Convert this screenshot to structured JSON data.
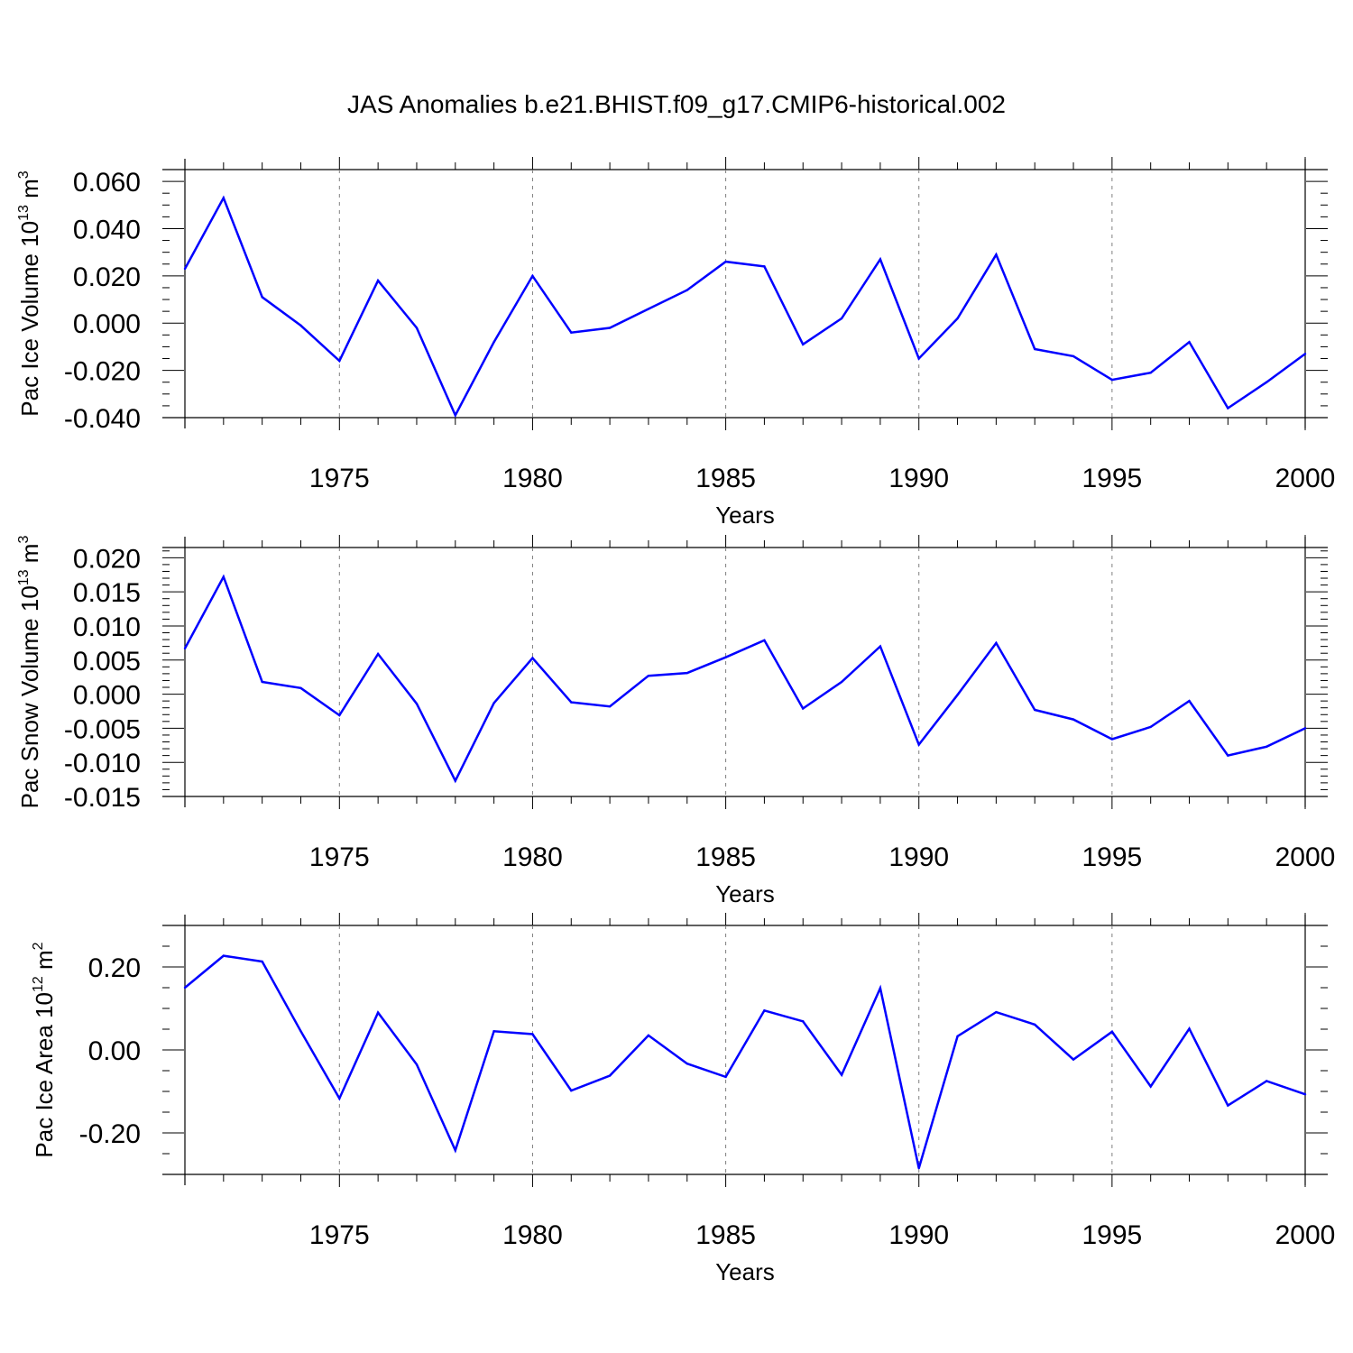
{
  "figure_title": "JAS Anomalies b.e21.BHIST.f09_g17.CMIP6-historical.002",
  "colors": {
    "line": "#0000ff",
    "axis": "#000000",
    "grid": "#808080"
  },
  "chart_data": [
    {
      "type": "line",
      "title": "JAS Anomalies b.e21.BHIST.f09_g17.CMIP6-historical.002",
      "xlabel": "Years",
      "ylabel": {
        "prefix": "Pac Ice Volume 10",
        "exponent": "13",
        "unit": " m",
        "unit_exponent": "3"
      },
      "xlim": [
        1971,
        2000
      ],
      "ylim": [
        -0.04,
        0.065
      ],
      "x_ticks": [
        1975,
        1980,
        1985,
        1990,
        1995,
        2000
      ],
      "y_ticks": [
        -0.04,
        -0.02,
        0.0,
        0.02,
        0.04,
        0.06
      ],
      "y_tick_labels": [
        "-0.040",
        "-0.020",
        "0.000",
        "0.020",
        "0.040",
        "0.060"
      ],
      "y_minor_step": 0.005,
      "grid": "vertical dashed at major x ticks",
      "series": [
        {
          "x": [
            1971,
            1972,
            1973,
            1974,
            1975,
            1976,
            1977,
            1978,
            1979,
            1980,
            1981,
            1982,
            1983,
            1984,
            1985,
            1986,
            1987,
            1988,
            1989,
            1990,
            1991,
            1992,
            1993,
            1994,
            1995,
            1996,
            1997,
            1998,
            1999,
            2000
          ],
          "values": [
            0.023,
            0.053,
            0.011,
            -0.001,
            -0.016,
            0.018,
            -0.002,
            -0.039,
            -0.008,
            0.02,
            -0.004,
            -0.002,
            0.006,
            0.014,
            0.026,
            0.024,
            -0.009,
            0.002,
            0.027,
            -0.015,
            0.002,
            0.029,
            -0.011,
            -0.014,
            -0.024,
            -0.021,
            -0.008,
            -0.036,
            -0.025,
            -0.013
          ]
        }
      ]
    },
    {
      "type": "line",
      "xlabel": "Years",
      "ylabel": {
        "prefix": "Pac Snow Volume 10",
        "exponent": "13",
        "unit": " m",
        "unit_exponent": "3"
      },
      "xlim": [
        1971,
        2000
      ],
      "ylim": [
        -0.015,
        0.0215
      ],
      "x_ticks": [
        1975,
        1980,
        1985,
        1990,
        1995,
        2000
      ],
      "y_ticks": [
        -0.015,
        -0.01,
        -0.005,
        0.0,
        0.005,
        0.01,
        0.015,
        0.02
      ],
      "y_tick_labels": [
        "-0.015",
        "-0.010",
        "-0.005",
        "0.000",
        "0.005",
        "0.010",
        "0.015",
        "0.020"
      ],
      "y_minor_step": 0.001,
      "grid": "vertical dashed at major x ticks",
      "series": [
        {
          "x": [
            1971,
            1972,
            1973,
            1974,
            1975,
            1976,
            1977,
            1978,
            1979,
            1980,
            1981,
            1982,
            1983,
            1984,
            1985,
            1986,
            1987,
            1988,
            1989,
            1990,
            1991,
            1992,
            1993,
            1994,
            1995,
            1996,
            1997,
            1998,
            1999,
            2000
          ],
          "values": [
            0.0067,
            0.0172,
            0.0018,
            0.0009,
            -0.0031,
            0.0059,
            -0.0014,
            -0.0127,
            -0.0013,
            0.0053,
            -0.0012,
            -0.0018,
            0.0027,
            0.0031,
            0.0054,
            0.0079,
            -0.0021,
            0.0018,
            0.007,
            -0.0074,
            -0.0001,
            0.0075,
            -0.0023,
            -0.0037,
            -0.0066,
            -0.0048,
            -0.001,
            -0.009,
            -0.0077,
            -0.005
          ]
        }
      ]
    },
    {
      "type": "line",
      "xlabel": "Years",
      "ylabel": {
        "prefix": "Pac Ice Area 10",
        "exponent": "12",
        "unit": " m",
        "unit_exponent": "2"
      },
      "xlim": [
        1971,
        2000
      ],
      "ylim": [
        -0.3,
        0.3
      ],
      "x_ticks": [
        1975,
        1980,
        1985,
        1990,
        1995,
        2000
      ],
      "y_ticks": [
        -0.2,
        0.0,
        0.2
      ],
      "y_tick_labels": [
        "-0.20",
        "0.00",
        "0.20"
      ],
      "y_minor_step": 0.05,
      "grid": "vertical dashed at major x ticks",
      "series": [
        {
          "x": [
            1971,
            1972,
            1973,
            1974,
            1975,
            1976,
            1977,
            1978,
            1979,
            1980,
            1981,
            1982,
            1983,
            1984,
            1985,
            1986,
            1987,
            1988,
            1989,
            1990,
            1991,
            1992,
            1993,
            1994,
            1995,
            1996,
            1997,
            1998,
            1999,
            2000
          ],
          "values": [
            0.15,
            0.227,
            0.213,
            0.045,
            -0.117,
            0.09,
            -0.035,
            -0.242,
            0.045,
            0.038,
            -0.098,
            -0.062,
            0.035,
            -0.033,
            -0.065,
            0.095,
            0.069,
            -0.06,
            0.149,
            -0.285,
            0.033,
            0.091,
            0.061,
            -0.023,
            0.044,
            -0.088,
            0.051,
            -0.134,
            -0.075,
            -0.107
          ]
        }
      ]
    }
  ]
}
